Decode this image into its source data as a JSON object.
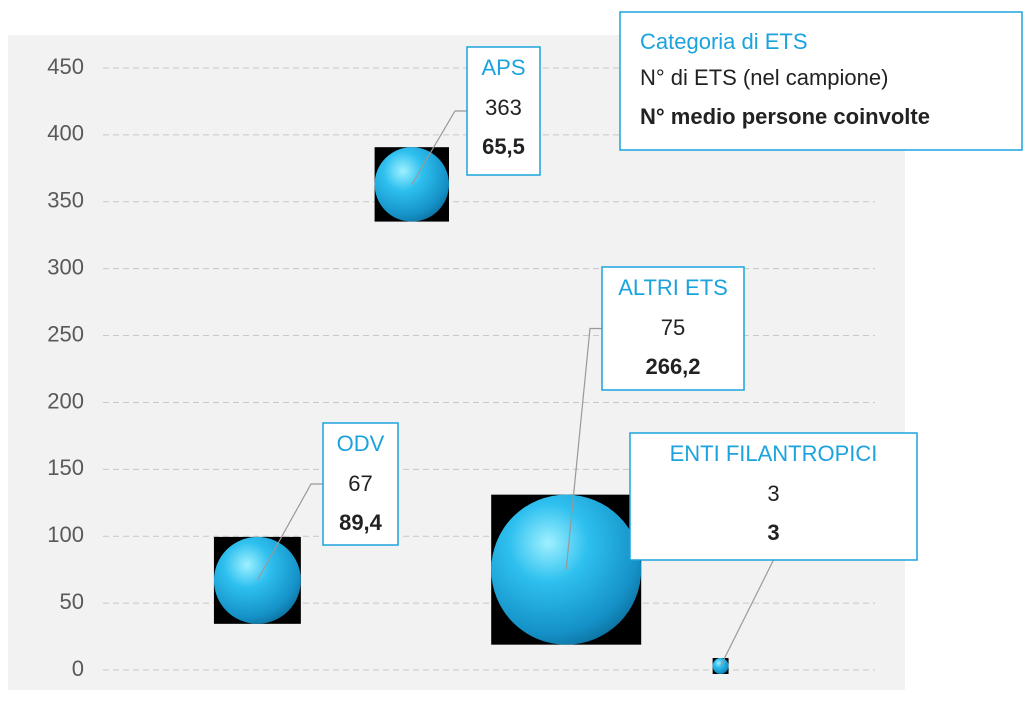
{
  "chart_data": {
    "type": "bubble",
    "labels": [
      "ODV",
      "APS",
      "ALTRI ETS",
      "ENTI FILANTROPICI"
    ],
    "values": [
      67,
      363,
      75,
      3
    ],
    "sizes": [
      89.4,
      65.5,
      266.2,
      3
    ],
    "size_labels": [
      "89,4",
      "65,5",
      "266,2",
      "3"
    ],
    "color": "#1ba3dd",
    "ylim": [
      0,
      450
    ],
    "yticks": [
      0,
      50,
      100,
      150,
      200,
      250,
      300,
      350,
      400,
      450
    ],
    "grid": true,
    "legend": {
      "title": "Categoria di ETS",
      "count": "N° di ETS (nel campione)",
      "size": "N° medio persone coinvolte"
    }
  }
}
